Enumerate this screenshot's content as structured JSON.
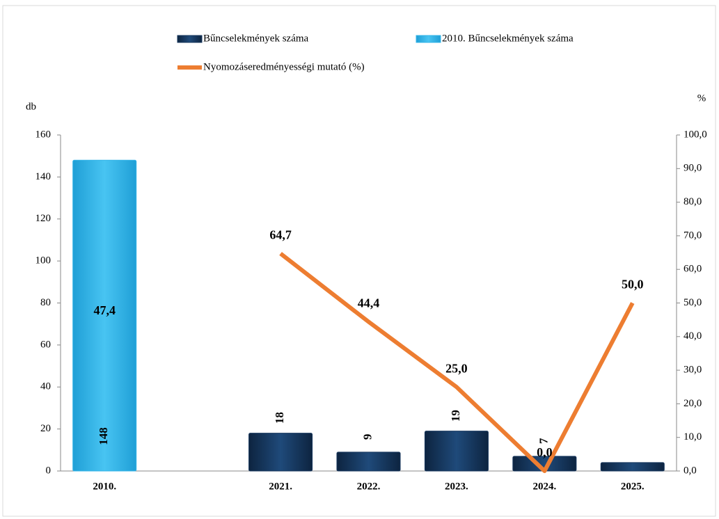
{
  "chart_data": {
    "type": "bar",
    "categories": [
      "2010.",
      null,
      "2021.",
      "2022.",
      "2023.",
      "2024.",
      "2025."
    ],
    "ylabel": "db",
    "y2label": "%",
    "ylim": [
      0,
      160
    ],
    "yticks": [
      0,
      20,
      40,
      60,
      80,
      100,
      120,
      140,
      160
    ],
    "y2lim": [
      0,
      100
    ],
    "y2ticks": [
      {
        "value": 0,
        "label": "0,0"
      },
      {
        "value": 10,
        "label": "10,0"
      },
      {
        "value": 20,
        "label": "20,0"
      },
      {
        "value": 30,
        "label": "30,0"
      },
      {
        "value": 40,
        "label": "40,0"
      },
      {
        "value": 50,
        "label": "50,0"
      },
      {
        "value": 60,
        "label": "60,0"
      },
      {
        "value": 70,
        "label": "70,0"
      },
      {
        "value": 80,
        "label": "80,0"
      },
      {
        "value": 90,
        "label": "90,0"
      },
      {
        "value": 100,
        "label": "100,0"
      }
    ],
    "series": [
      {
        "name": "Bűncselekmények száma",
        "type": "bar",
        "color": "#17375e",
        "values": [
          null,
          null,
          18,
          9,
          19,
          7,
          4
        ],
        "value_labels": [
          null,
          null,
          "18",
          "9",
          "19",
          "7",
          null
        ]
      },
      {
        "name": "2010. Bűncselekmények száma",
        "type": "bar",
        "color": "#33b4e8",
        "values": [
          148,
          null,
          null,
          null,
          null,
          null,
          null
        ],
        "value_labels": [
          "148",
          null,
          null,
          null,
          null,
          null,
          null
        ]
      },
      {
        "name": "Nyomozáseredményességi mutató (%)",
        "type": "line",
        "axis": "y2",
        "color": "#ed7d31",
        "values": [
          47.4,
          null,
          64.7,
          44.4,
          25.0,
          0.0,
          50.0
        ],
        "value_labels": [
          "47,4",
          null,
          "64,7",
          "44,4",
          "25,0",
          "0,0",
          "50,0"
        ]
      }
    ]
  }
}
